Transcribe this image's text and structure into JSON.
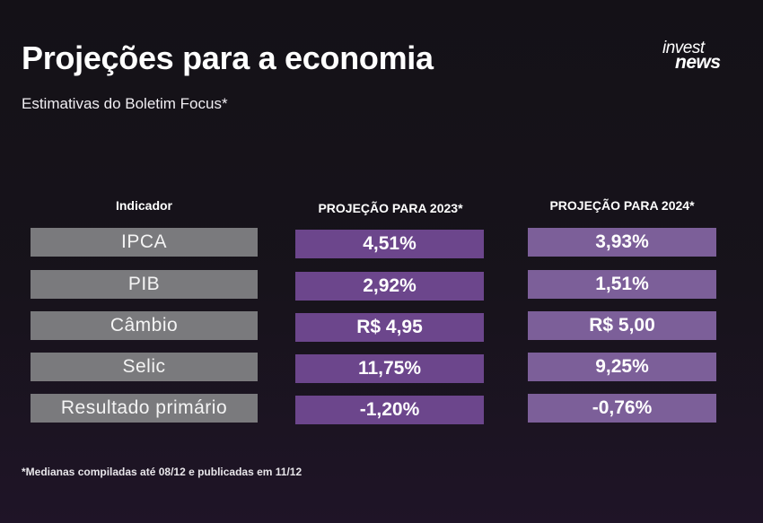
{
  "header": {
    "title": "Projeções para a economia",
    "subtitle": "Estimativas do Boletim Focus*"
  },
  "logo": {
    "line1": "invest",
    "line2": "news"
  },
  "table": {
    "columns": [
      "Indicador",
      "PROJEÇÃO PARA 2023*",
      "PROJEÇÃO PARA 2024*"
    ],
    "rows": [
      {
        "indicator": "IPCA",
        "p2023": "4,51%",
        "p2024": "3,93%"
      },
      {
        "indicator": "PIB",
        "p2023": "2,92%",
        "p2024": "1,51%"
      },
      {
        "indicator": "Câmbio",
        "p2023": "R$ 4,95",
        "p2024": "R$ 5,00"
      },
      {
        "indicator": "Selic",
        "p2023": "11,75%",
        "p2024": "9,25%"
      },
      {
        "indicator": "Resultado primário",
        "p2023": "-1,20%",
        "p2024": "-0,76%"
      }
    ]
  },
  "footnote": "*Medianas compiladas até 08/12 e publicadas em 11/12",
  "colors": {
    "background": "#141117",
    "indicator_cell": "#7a7a7d",
    "col2023_cell": "#6c468c",
    "col2024_cell": "#7c5f99"
  }
}
